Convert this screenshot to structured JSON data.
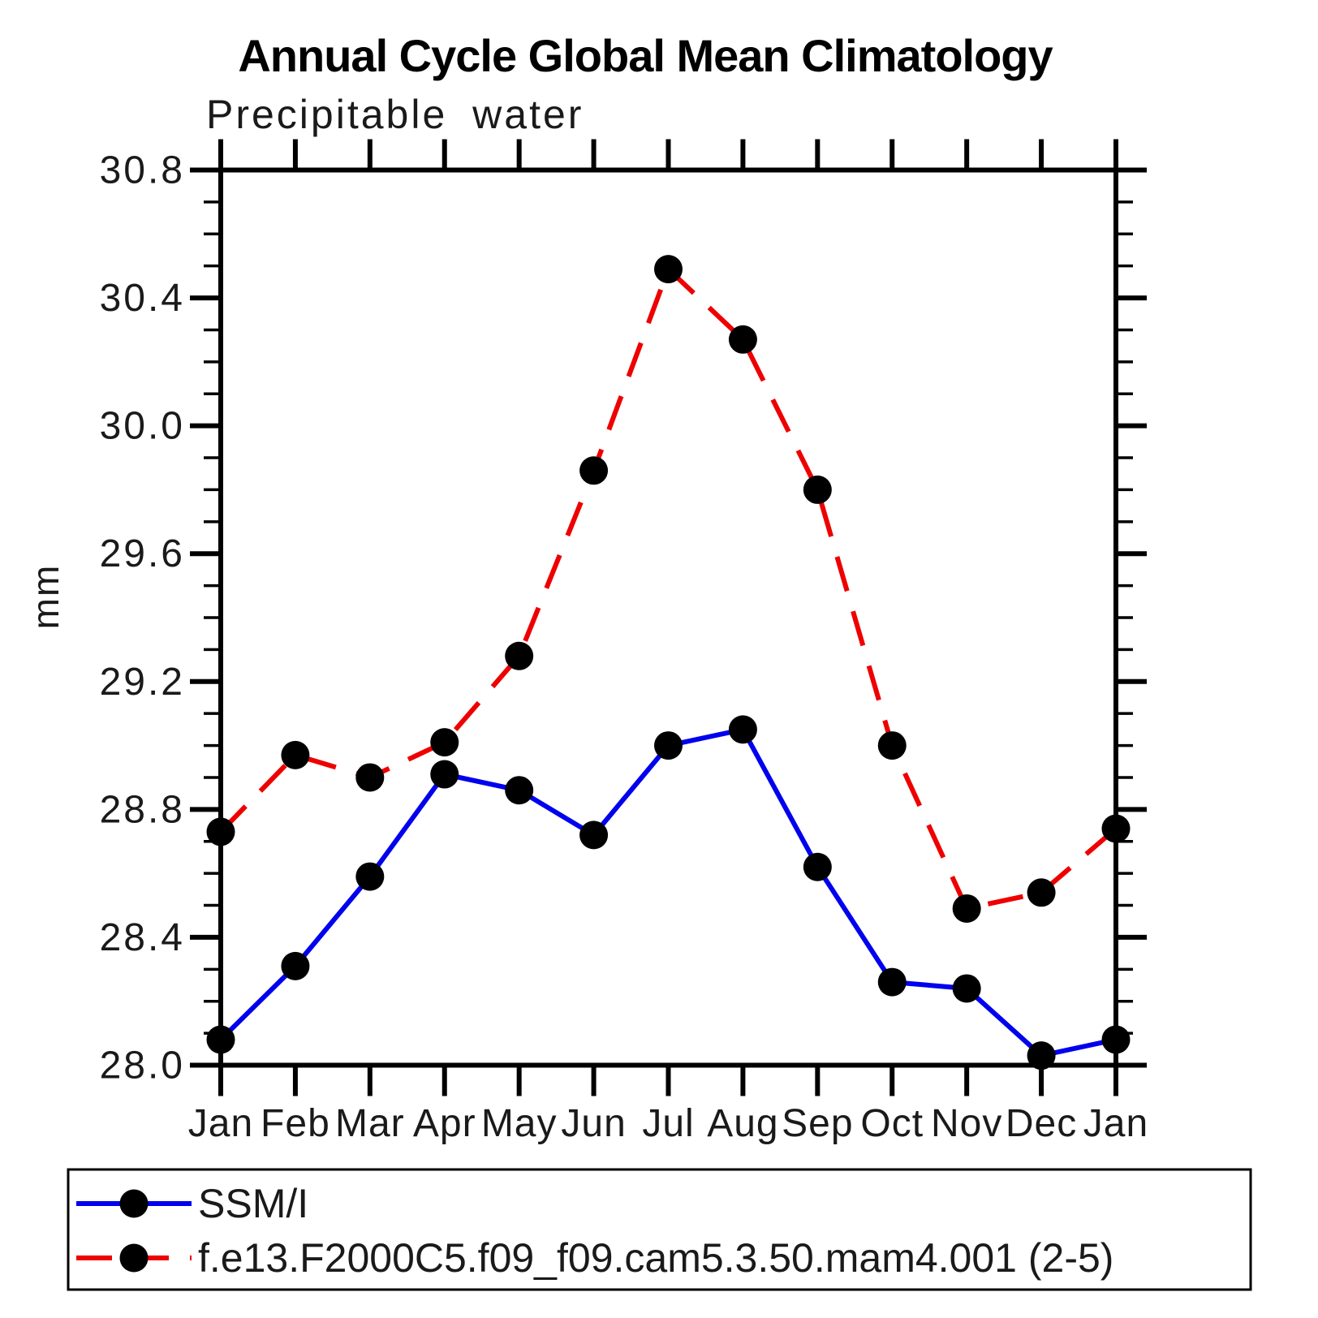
{
  "chart_data": {
    "type": "line",
    "title": "Annual Cycle Global Mean Climatology",
    "subtitle": "Precipitable water",
    "ylabel": "mm",
    "xlabel": "",
    "grid": false,
    "legend_position": "bottom-left-box",
    "x_categories": [
      "Jan",
      "Feb",
      "Mar",
      "Apr",
      "May",
      "Jun",
      "Jul",
      "Aug",
      "Sep",
      "Oct",
      "Nov",
      "Dec",
      "Jan"
    ],
    "ylim": [
      28.0,
      30.8
    ],
    "y_major_step": 0.4,
    "y_minor_step": 0.1,
    "y_tick_labels": [
      "28.0",
      "28.4",
      "28.8",
      "29.2",
      "29.6",
      "30.0",
      "30.4",
      "30.8"
    ],
    "axis_color": "#000000",
    "marker_color": "#000000",
    "series": [
      {
        "name": "SSM/I",
        "color": "#0000ee",
        "line_style": "solid",
        "marker": "circle",
        "values": [
          28.08,
          28.31,
          28.59,
          28.91,
          28.86,
          28.72,
          29.0,
          29.05,
          28.62,
          28.26,
          28.24,
          28.03,
          28.08
        ]
      },
      {
        "name": "f.e13.F2000C5.f09_f09.cam5.3.50.mam4.001 (2-5)",
        "color": "#ee0000",
        "line_style": "dashed",
        "marker": "circle",
        "values": [
          28.73,
          28.97,
          28.9,
          29.01,
          29.28,
          29.86,
          30.49,
          30.27,
          29.8,
          29.0,
          28.49,
          28.54,
          28.74
        ]
      }
    ]
  }
}
